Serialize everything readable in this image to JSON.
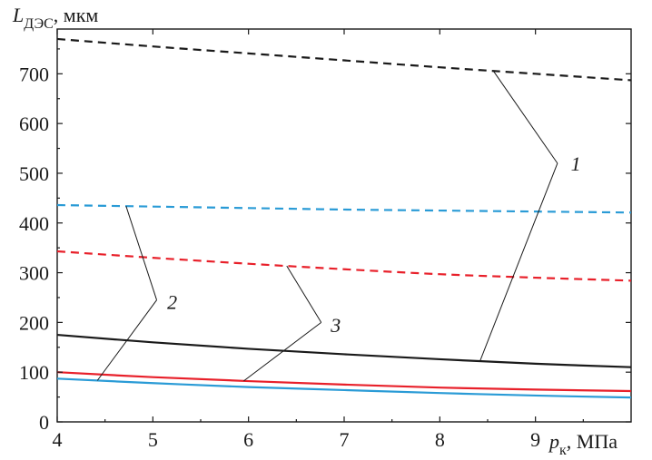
{
  "chart_data": {
    "type": "line",
    "y_axis_label": {
      "main": "L",
      "sub": "ДЭС",
      "unit": ", мкм"
    },
    "x_axis_label": {
      "main": "p",
      "sub": "к",
      "unit": ", МПа"
    },
    "xlim": [
      4,
      10
    ],
    "ylim": [
      0,
      790
    ],
    "x_ticks": [
      4,
      5,
      6,
      7,
      8,
      9
    ],
    "y_ticks": [
      0,
      100,
      200,
      300,
      400,
      500,
      600,
      700
    ],
    "series": [
      {
        "group": "1",
        "style": "dashed",
        "color": "#1a1a1a",
        "x": [
          4,
          5,
          6,
          7,
          8,
          9,
          10
        ],
        "y": [
          770,
          755,
          741,
          727,
          713,
          700,
          687
        ]
      },
      {
        "group": "1",
        "style": "solid",
        "color": "#1a1a1a",
        "x": [
          4,
          5,
          6,
          7,
          8,
          9,
          10
        ],
        "y": [
          175,
          160,
          147,
          136,
          126,
          117,
          110
        ]
      },
      {
        "group": "2",
        "style": "dashed",
        "color": "#2a9bd6",
        "x": [
          4,
          5,
          6,
          7,
          8,
          9,
          10
        ],
        "y": [
          436,
          433,
          430,
          427,
          425,
          423,
          421
        ]
      },
      {
        "group": "2",
        "style": "solid",
        "color": "#2a9bd6",
        "x": [
          4,
          5,
          6,
          7,
          8,
          9,
          10
        ],
        "y": [
          87,
          78,
          70,
          64,
          58,
          53,
          49
        ]
      },
      {
        "group": "3",
        "style": "dashed",
        "color": "#e8202a",
        "x": [
          4,
          5,
          6,
          7,
          8,
          9,
          10
        ],
        "y": [
          343,
          330,
          318,
          307,
          297,
          290,
          284
        ]
      },
      {
        "group": "3",
        "style": "solid",
        "color": "#e8202a",
        "x": [
          4,
          5,
          6,
          7,
          8,
          9,
          10
        ],
        "y": [
          100,
          90,
          82,
          75,
          69,
          65,
          62
        ]
      }
    ],
    "annotations": [
      {
        "text": "1",
        "series_refs": [
          0,
          1
        ]
      },
      {
        "text": "2",
        "series_refs": [
          2,
          3
        ]
      },
      {
        "text": "3",
        "series_refs": [
          4,
          5
        ]
      }
    ],
    "grid": false,
    "legend": "none"
  }
}
